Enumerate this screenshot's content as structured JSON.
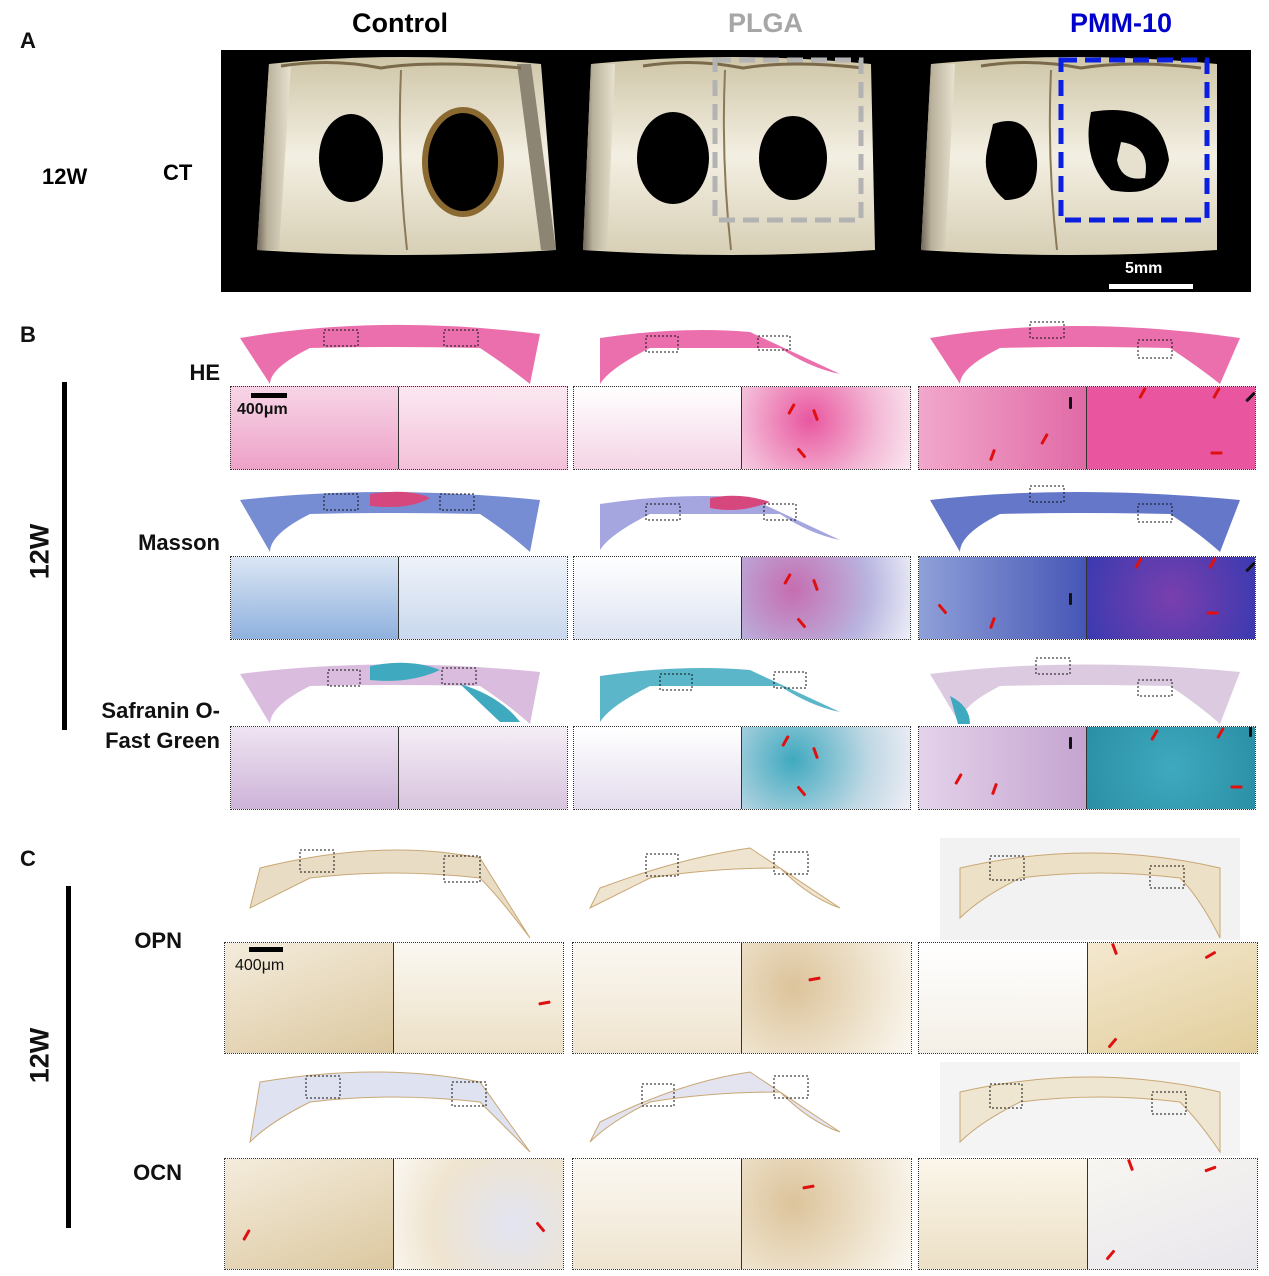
{
  "panels": {
    "a": "A",
    "b": "B",
    "c": "C"
  },
  "groups": [
    {
      "label": "Control",
      "color": "#000000"
    },
    {
      "label": "PLGA",
      "color": "#a6a6a6"
    },
    {
      "label": "PMM-10",
      "color": "#0000cc"
    }
  ],
  "panel_a": {
    "timepoint": "12W",
    "modality": "CT",
    "scale": "5mm"
  },
  "panel_b": {
    "timepoint": "12W",
    "stains": [
      "HE",
      "Masson",
      "Safranin O-\nFast Green"
    ],
    "scale": "400μm"
  },
  "panel_c": {
    "timepoint": "12W",
    "markers": [
      "OPN",
      "OCN"
    ],
    "scale": "400μm"
  },
  "colors": {
    "he": "#e9569f",
    "masson": "#5570c8",
    "safranin": "#3fa9bf",
    "ihc": "#c9a774",
    "arrow_red": "#e01010",
    "arrow_black": "#111111",
    "plga_box": "#b3b3b3",
    "pmm_box": "#0a1fe0"
  }
}
